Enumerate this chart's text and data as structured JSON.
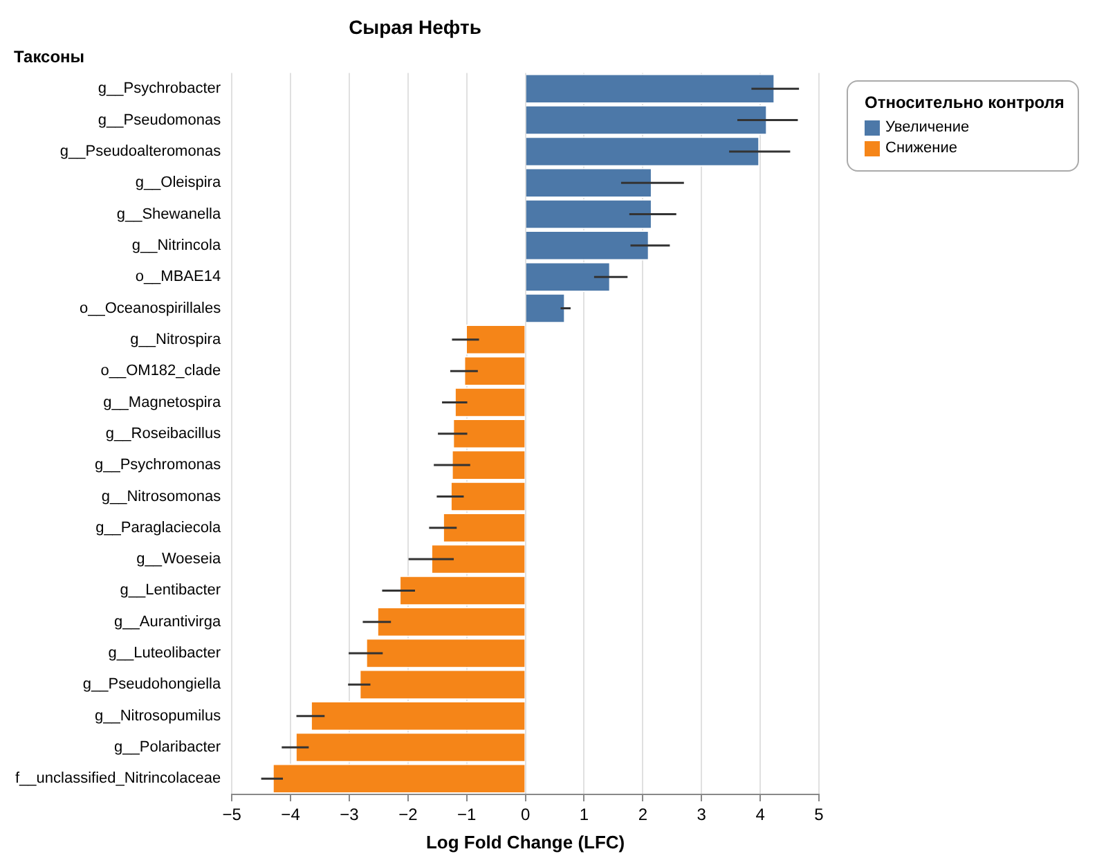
{
  "chart_data": {
    "type": "bar",
    "orientation": "horizontal",
    "title": "Сырая Нефть",
    "xlabel": "Log Fold Change (LFC)",
    "ylabel": "Таксоны",
    "legend_title": "Относительно контроля",
    "legend": "top right",
    "grid": "x",
    "categories": [
      "g__Psychrobacter",
      "g__Pseudomonas",
      "g__Pseudoalteromonas",
      "g__Oleispira",
      "g__Shewanella",
      "g__Nitrincola",
      "o__MBAE14",
      "o__Oceanospirillales",
      "g__Nitrospira",
      "o__OM182_clade",
      "g__Magnetospira",
      "g__Roseibacillus",
      "g__Psychromonas",
      "g__Nitrosomonas",
      "g__Paraglaciecola",
      "g__Woeseia",
      "g__Lentibacter",
      "g__Aurantivirga",
      "g__Luteolibacter",
      "g__Pseudohongiella",
      "g__Nitrosopumilus",
      "g__Polaribacter",
      "f__unclassified_Nitrincolaceae"
    ],
    "series": [
      {
        "name": "Увеличение",
        "color": "#4c78a8",
        "values": [
          4.25,
          4.12,
          3.99,
          2.16,
          2.16,
          2.11,
          1.45,
          0.68,
          null,
          null,
          null,
          null,
          null,
          null,
          null,
          null,
          null,
          null,
          null,
          null,
          null,
          null,
          null
        ],
        "errors": [
          [
            3.85,
            4.66
          ],
          [
            3.61,
            4.64
          ],
          [
            3.47,
            4.51
          ],
          [
            1.63,
            2.7
          ],
          [
            1.77,
            2.57
          ],
          [
            1.79,
            2.46
          ],
          [
            1.17,
            1.74
          ],
          [
            0.6,
            0.77
          ],
          null,
          null,
          null,
          null,
          null,
          null,
          null,
          null,
          null,
          null,
          null,
          null,
          null,
          null,
          null
        ]
      },
      {
        "name": "Снижение",
        "color": "#f58518",
        "values": [
          null,
          null,
          null,
          null,
          null,
          null,
          null,
          null,
          -1.02,
          -1.05,
          -1.21,
          -1.24,
          -1.26,
          -1.28,
          -1.41,
          -1.61,
          -2.15,
          -2.53,
          -2.72,
          -2.83,
          -3.66,
          -3.92,
          -4.31
        ],
        "errors": [
          null,
          null,
          null,
          null,
          null,
          null,
          null,
          null,
          [
            -1.25,
            -0.79
          ],
          [
            -1.28,
            -0.81
          ],
          [
            -1.42,
            -0.99
          ],
          [
            -1.49,
            -0.99
          ],
          [
            -1.56,
            -0.94
          ],
          [
            -1.51,
            -1.05
          ],
          [
            -1.64,
            -1.17
          ],
          [
            -1.99,
            -1.22
          ],
          [
            -2.44,
            -1.88
          ],
          [
            -2.77,
            -2.29
          ],
          [
            -3.01,
            -2.43
          ],
          [
            -3.02,
            -2.64
          ],
          [
            -3.9,
            -3.42
          ],
          [
            -4.15,
            -3.69
          ],
          [
            -4.5,
            -4.13
          ]
        ]
      }
    ],
    "xlim": [
      -5,
      5
    ],
    "xticks": [
      -5,
      -4,
      -3,
      -2,
      -1,
      0,
      1,
      2,
      3,
      4,
      5
    ]
  }
}
